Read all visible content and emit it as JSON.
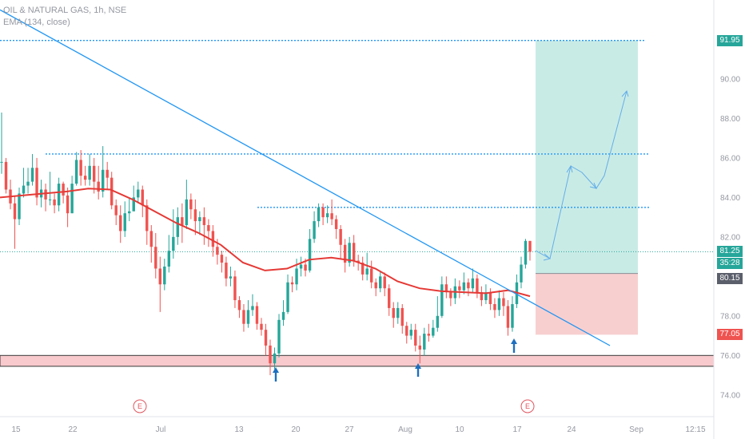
{
  "legend": {
    "symbol": "OIL & NATURAL GAS, 1h, NSE",
    "indicator": "EMA (134, close)"
  },
  "colors": {
    "up": "#26a69a",
    "down": "#ef5350",
    "ema": "#e53935",
    "trendline": "#2196f3",
    "target_zone": "#c9ebe6",
    "stop_zone": "#f8cfcf",
    "support_zone": "#f8c9cd",
    "last_price": "#26a69a",
    "entry": "#5b5f6b",
    "stop": "#ef5350"
  },
  "chart_data": {
    "type": "candlestick",
    "y_ticks": [
      "92.00",
      "90.00",
      "88.00",
      "86.00",
      "84.00",
      "82.00",
      "80.00",
      "78.00",
      "76.00",
      "74.00"
    ],
    "x_ticks": [
      "15",
      "22",
      "Jul",
      "13",
      "20",
      "27",
      "Aug",
      "10",
      "17",
      "24",
      "Sep",
      "12:15"
    ],
    "ylim": [
      72.9,
      94.0
    ],
    "price_labels": {
      "target": "91.95",
      "last": "81.25",
      "countdown": "35:28",
      "entry": "80.15",
      "stop": "77.05"
    },
    "events": [
      "E",
      "E"
    ],
    "horizontal_levels": [
      91.95,
      86.2,
      83.5,
      81.25
    ],
    "support_zone": [
      75.45,
      76.0
    ],
    "position": {
      "target": 91.95,
      "entry": 80.15,
      "stop": 77.05
    },
    "trendline": {
      "from": 93.5,
      "to": 76.5
    },
    "ema_path": [
      84.0,
      84.1,
      84.2,
      84.3,
      84.45,
      84.4,
      83.9,
      83.3,
      82.7,
      82.2,
      81.6,
      80.7,
      80.3,
      80.4,
      80.85,
      80.95,
      80.8,
      80.4,
      79.75,
      79.4,
      79.25,
      79.2,
      79.15,
      79.3,
      79.0
    ],
    "candles": [
      [
        85.8,
        85.8,
        88.3,
        85.2
      ],
      [
        85.8,
        84.4,
        86.0,
        84.2
      ],
      [
        84.4,
        83.7,
        84.9,
        83.4
      ],
      [
        83.7,
        82.9,
        84.1,
        81.4
      ],
      [
        82.9,
        84.2,
        84.5,
        82.6
      ],
      [
        84.2,
        84.6,
        85.5,
        84.0
      ],
      [
        84.6,
        84.8,
        85.5,
        84.2
      ],
      [
        84.8,
        85.5,
        86.2,
        84.6
      ],
      [
        85.5,
        84.0,
        86.0,
        83.6
      ],
      [
        84.0,
        84.4,
        84.9,
        83.5
      ],
      [
        84.4,
        83.9,
        84.7,
        83.3
      ],
      [
        83.9,
        83.9,
        85.3,
        83.6
      ],
      [
        83.9,
        83.6,
        84.2,
        83.2
      ],
      [
        83.6,
        84.7,
        85.0,
        83.3
      ],
      [
        84.7,
        84.1,
        84.8,
        83.7
      ],
      [
        84.1,
        83.2,
        84.5,
        82.5
      ],
      [
        83.2,
        84.7,
        85.1,
        83.2
      ],
      [
        84.7,
        85.9,
        86.3,
        84.6
      ],
      [
        85.9,
        85.1,
        86.4,
        84.6
      ],
      [
        85.1,
        84.9,
        85.6,
        84.6
      ],
      [
        84.9,
        85.6,
        86.2,
        84.6
      ],
      [
        85.6,
        84.8,
        86.0,
        84.2
      ],
      [
        84.8,
        84.3,
        85.6,
        83.9
      ],
      [
        84.3,
        85.4,
        86.6,
        84.0
      ],
      [
        85.4,
        85.0,
        85.8,
        84.4
      ],
      [
        85.0,
        83.6,
        85.3,
        83.4
      ],
      [
        83.6,
        83.1,
        83.9,
        82.6
      ],
      [
        83.1,
        82.3,
        83.6,
        81.7
      ],
      [
        82.3,
        83.2,
        83.8,
        82.0
      ],
      [
        83.2,
        83.3,
        84.0,
        82.8
      ],
      [
        83.3,
        84.0,
        84.6,
        83.3
      ],
      [
        84.0,
        84.4,
        84.8,
        83.7
      ],
      [
        84.4,
        83.6,
        84.6,
        83.0
      ],
      [
        83.6,
        82.3,
        83.9,
        81.6
      ],
      [
        82.3,
        81.5,
        82.6,
        80.7
      ],
      [
        81.5,
        80.4,
        82.2,
        79.9
      ],
      [
        80.4,
        79.6,
        81.0,
        78.2
      ],
      [
        79.6,
        80.5,
        80.9,
        79.3
      ],
      [
        80.5,
        81.3,
        82.1,
        80.2
      ],
      [
        81.3,
        82.0,
        83.4,
        80.9
      ],
      [
        82.0,
        83.0,
        83.5,
        81.6
      ],
      [
        83.0,
        82.6,
        83.7,
        81.7
      ],
      [
        82.6,
        83.9,
        84.9,
        82.4
      ],
      [
        83.9,
        83.4,
        84.2,
        82.9
      ],
      [
        83.4,
        82.8,
        83.9,
        82.1
      ],
      [
        82.8,
        83.0,
        83.3,
        82.1
      ],
      [
        83.0,
        82.6,
        83.5,
        81.6
      ],
      [
        82.6,
        82.3,
        82.9,
        81.5
      ],
      [
        82.3,
        81.5,
        82.6,
        81.0
      ],
      [
        81.5,
        81.1,
        81.9,
        80.6
      ],
      [
        81.1,
        80.7,
        81.3,
        80.2
      ],
      [
        80.7,
        79.9,
        81.0,
        79.5
      ],
      [
        79.9,
        80.0,
        80.5,
        79.5
      ],
      [
        80.0,
        78.8,
        80.3,
        78.4
      ],
      [
        78.8,
        78.3,
        79.0,
        77.9
      ],
      [
        78.3,
        77.6,
        78.6,
        77.2
      ],
      [
        77.6,
        78.3,
        78.8,
        77.4
      ],
      [
        78.3,
        78.5,
        79.1,
        78.0
      ],
      [
        78.5,
        77.6,
        78.7,
        77.3
      ],
      [
        77.6,
        77.3,
        77.9,
        77.0
      ],
      [
        77.3,
        76.5,
        77.6,
        76.0
      ],
      [
        76.5,
        75.6,
        76.8,
        75.0
      ],
      [
        75.6,
        76.1,
        76.4,
        75.3
      ],
      [
        76.1,
        77.8,
        78.1,
        75.9
      ],
      [
        77.8,
        78.2,
        78.8,
        77.5
      ],
      [
        78.2,
        79.7,
        80.1,
        78.1
      ],
      [
        79.7,
        79.6,
        80.0,
        79.2
      ],
      [
        79.6,
        80.4,
        80.9,
        79.3
      ],
      [
        80.4,
        80.6,
        81.0,
        80.0
      ],
      [
        80.6,
        80.3,
        80.9,
        80.0
      ],
      [
        80.3,
        81.9,
        82.4,
        80.2
      ],
      [
        81.9,
        82.8,
        83.3,
        81.7
      ],
      [
        82.8,
        83.5,
        83.7,
        82.5
      ],
      [
        83.5,
        83.0,
        83.7,
        82.6
      ],
      [
        83.0,
        83.2,
        83.6,
        82.7
      ],
      [
        83.2,
        82.9,
        83.9,
        82.6
      ],
      [
        82.9,
        82.4,
        83.1,
        81.9
      ],
      [
        82.4,
        81.6,
        82.6,
        80.9
      ],
      [
        81.6,
        80.7,
        81.9,
        80.2
      ],
      [
        80.7,
        81.7,
        82.0,
        80.5
      ],
      [
        81.7,
        80.8,
        82.1,
        80.5
      ],
      [
        80.8,
        80.7,
        81.1,
        80.3
      ],
      [
        80.7,
        80.1,
        81.0,
        79.8
      ],
      [
        80.1,
        80.4,
        81.2,
        79.8
      ],
      [
        80.4,
        79.7,
        80.8,
        79.4
      ],
      [
        79.7,
        79.4,
        79.9,
        79.0
      ],
      [
        79.4,
        80.0,
        80.3,
        79.2
      ],
      [
        80.0,
        79.4,
        80.2,
        79.0
      ],
      [
        79.4,
        78.4,
        79.6,
        78.0
      ],
      [
        78.4,
        77.9,
        78.7,
        77.4
      ],
      [
        77.9,
        78.4,
        78.7,
        77.6
      ],
      [
        78.4,
        77.5,
        78.6,
        77.1
      ],
      [
        77.5,
        77.0,
        77.7,
        76.6
      ],
      [
        77.0,
        77.3,
        77.6,
        76.8
      ],
      [
        77.3,
        76.5,
        77.6,
        76.2
      ],
      [
        76.5,
        76.3,
        77.0,
        75.6
      ],
      [
        76.3,
        77.1,
        77.4,
        76.0
      ],
      [
        77.1,
        77.0,
        77.6,
        76.7
      ],
      [
        77.0,
        77.4,
        77.8,
        76.9
      ],
      [
        77.4,
        78.0,
        79.0,
        77.2
      ],
      [
        78.0,
        79.6,
        80.0,
        77.9
      ],
      [
        79.6,
        79.2,
        80.0,
        78.9
      ],
      [
        79.2,
        78.9,
        79.4,
        78.5
      ],
      [
        78.9,
        79.5,
        79.9,
        78.6
      ],
      [
        79.5,
        79.3,
        79.8,
        78.9
      ],
      [
        79.3,
        79.7,
        80.2,
        79.1
      ],
      [
        79.7,
        79.4,
        79.9,
        79.0
      ],
      [
        79.4,
        79.9,
        80.4,
        79.2
      ],
      [
        79.9,
        79.2,
        80.1,
        78.9
      ],
      [
        79.2,
        78.8,
        79.5,
        78.5
      ],
      [
        78.8,
        79.2,
        79.6,
        78.6
      ],
      [
        79.2,
        78.6,
        79.4,
        78.3
      ],
      [
        78.6,
        78.3,
        78.9,
        77.9
      ],
      [
        78.3,
        78.9,
        79.3,
        78.0
      ],
      [
        78.9,
        78.5,
        79.2,
        78.0
      ],
      [
        78.5,
        77.4,
        78.8,
        77.0
      ],
      [
        77.4,
        78.6,
        79.0,
        77.2
      ],
      [
        78.6,
        79.7,
        80.1,
        78.4
      ],
      [
        79.7,
        80.6,
        81.0,
        79.4
      ],
      [
        80.6,
        81.8,
        81.9,
        80.4
      ],
      [
        81.8,
        81.25,
        81.8,
        80.8
      ]
    ]
  }
}
